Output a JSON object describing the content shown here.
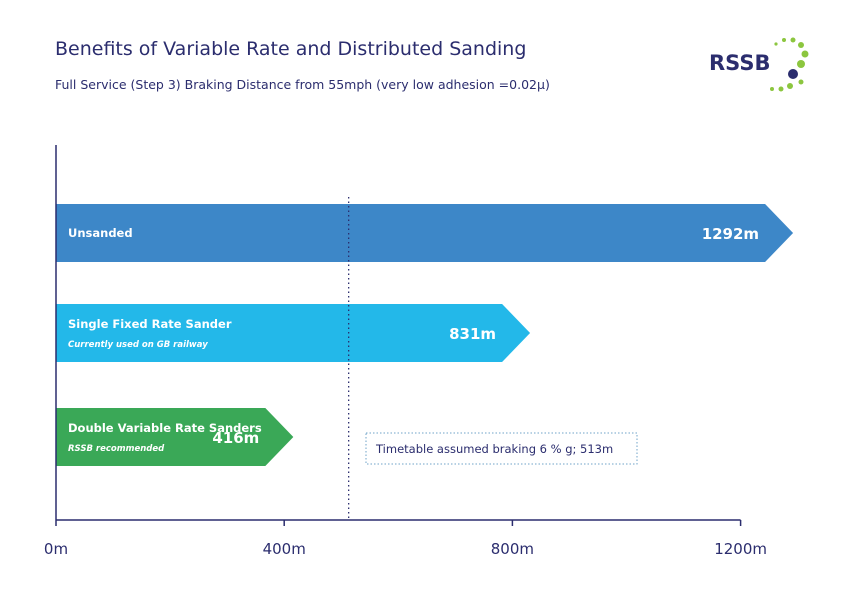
{
  "title": "Benefits of Variable Rate and Distributed Sanding",
  "subtitle": "Full Service (Step 3) Braking Distance from 55mph (very low adhesion =0.02μ)",
  "logo": {
    "text": "RSSB",
    "color": "#2b2d6e",
    "accent": "#8cc63f"
  },
  "chart_data": {
    "type": "bar",
    "orientation": "horizontal",
    "categories": [
      "Unsanded",
      "Single Fixed Rate Sander",
      "Double Variable Rate Sanders"
    ],
    "sublabels": [
      "",
      "Currently used on GB railway",
      "RSSB recommended"
    ],
    "values": [
      1292,
      831,
      416
    ],
    "value_labels": [
      "1292m",
      "831m",
      "416m"
    ],
    "colors": [
      "#3d87c8",
      "#23b8e9",
      "#3aa857"
    ],
    "xlim": [
      0,
      1292
    ],
    "xticks": [
      0,
      400,
      800,
      1200
    ],
    "xtick_labels": [
      "0m",
      "400m",
      "800m",
      "1200m"
    ],
    "reference_line": {
      "value": 513,
      "label": "Timetable assumed braking 6 % g; 513m",
      "style": "dotted"
    },
    "grid": false,
    "legend": "none"
  }
}
